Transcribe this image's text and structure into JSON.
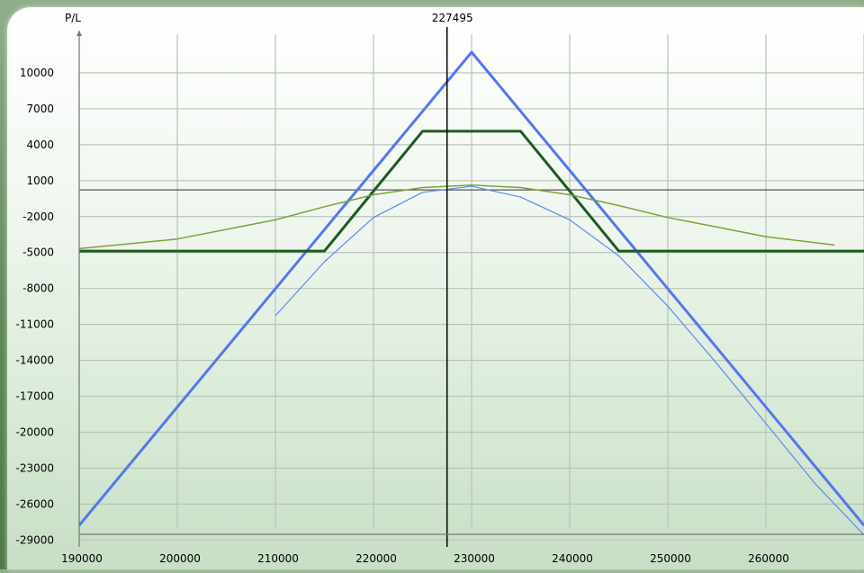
{
  "chart_data": {
    "type": "line",
    "title": "",
    "ylabel": "P/L",
    "xlabel": "",
    "marker_label": "227495",
    "marker_x": 227495,
    "xlim": [
      190000,
      270000
    ],
    "ylim": [
      -29000,
      12000
    ],
    "xticks": [
      190000,
      200000,
      210000,
      220000,
      230000,
      240000,
      250000,
      260000
    ],
    "yticks": [
      10000,
      7000,
      4000,
      1000,
      -2000,
      -5000,
      -8000,
      -11000,
      -14000,
      -17000,
      -20000,
      -23000,
      -26000,
      -29000
    ],
    "grid": true,
    "zero_line": 0,
    "series": [
      {
        "color": "#5577ee",
        "width": 3,
        "x": [
          190000,
          230000,
          270000
        ],
        "y": [
          -28000,
          11500,
          -28000
        ]
      },
      {
        "color": "#1f5a1f",
        "width": 3,
        "x": [
          190000,
          215000,
          225000,
          235000,
          245000,
          270000
        ],
        "y": [
          -5100,
          -5100,
          4900,
          4900,
          -5100,
          -5100
        ]
      },
      {
        "color": "#7aa33a",
        "width": 1.5,
        "x": [
          190000,
          200000,
          210000,
          215000,
          220000,
          225000,
          230000,
          235000,
          240000,
          245000,
          250000,
          255000,
          260000,
          267000
        ],
        "y": [
          -4900,
          -4100,
          -2500,
          -1400,
          -400,
          200,
          400,
          200,
          -400,
          -1300,
          -2300,
          -3100,
          -3900,
          -4600
        ]
      },
      {
        "color": "#5b8bf0",
        "width": 1.2,
        "x": [
          210000,
          215000,
          220000,
          225000,
          230000,
          235000,
          240000,
          245000,
          250000,
          255000,
          260000,
          265000,
          270000
        ],
        "y": [
          -10500,
          -6000,
          -2300,
          -200,
          300,
          -600,
          -2500,
          -5500,
          -9700,
          -14500,
          -19500,
          -24500,
          -28800
        ]
      }
    ]
  }
}
